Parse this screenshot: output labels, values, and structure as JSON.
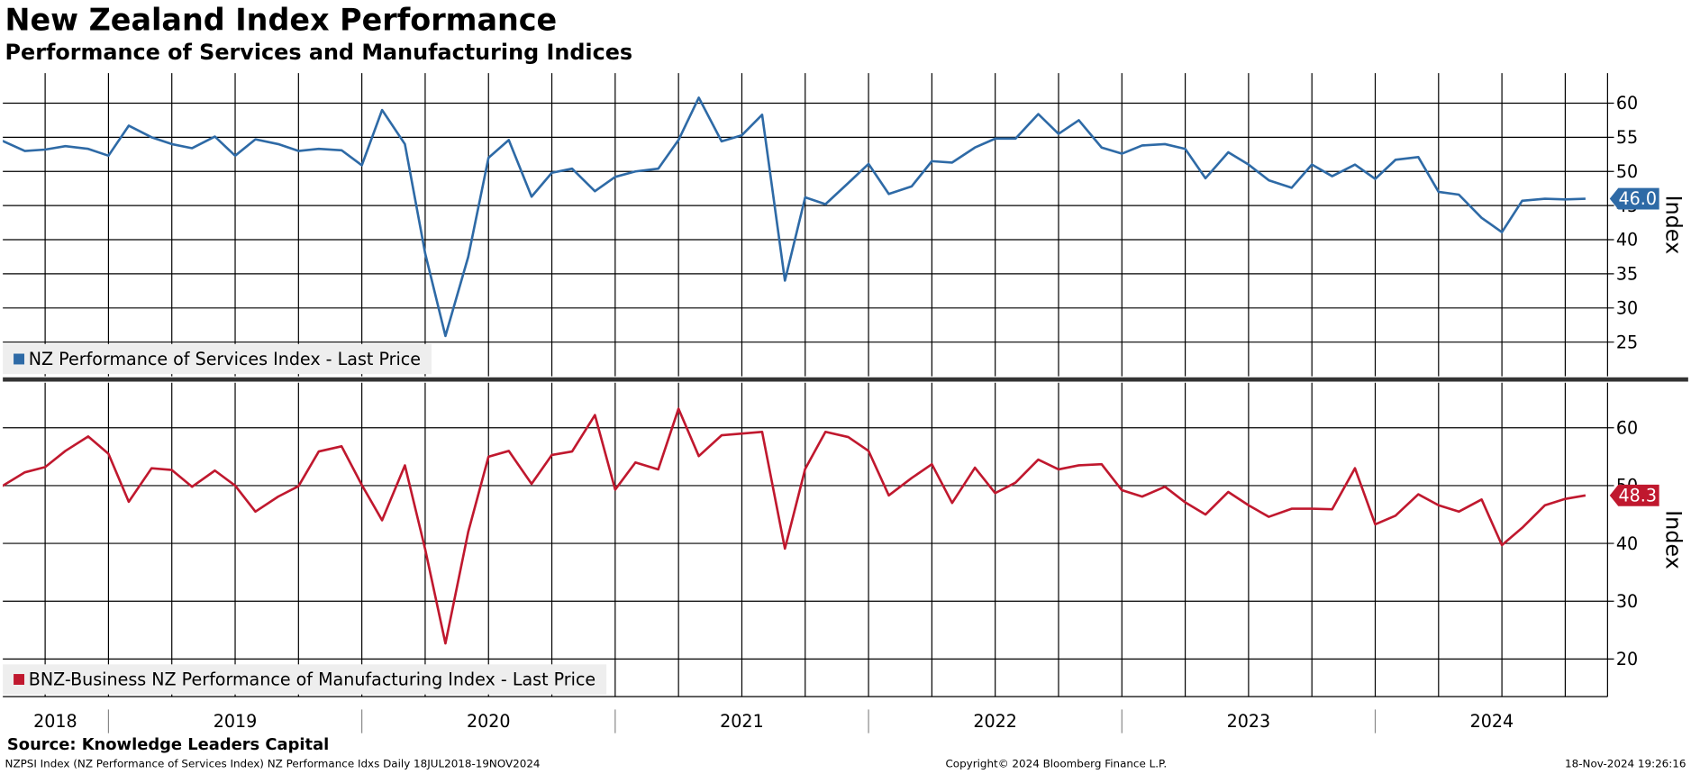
{
  "header": {
    "title": "New Zealand Index Performance",
    "subtitle": "Performance of Services and Manufacturing Indices"
  },
  "footer": {
    "source": "Source: Knowledge Leaders Capital",
    "note": "NZPSI Index (NZ Performance of Services Index) NZ Performance Idxs  Daily 18JUL2018-19NOV2024",
    "copyright": "Copyright© 2024 Bloomberg Finance L.P.",
    "timestamp": "18-Nov-2024 19:26:16"
  },
  "chart_data": [
    {
      "type": "line",
      "y_label": "Index",
      "grid": true,
      "legend": "lower left",
      "xlim": [
        2018.583,
        2024.917
      ],
      "x": [
        2018.58,
        2018.67,
        2018.75,
        2018.83,
        2018.92,
        2019.0,
        2019.08,
        2019.17,
        2019.25,
        2019.33,
        2019.42,
        2019.5,
        2019.58,
        2019.67,
        2019.75,
        2019.83,
        2019.92,
        2020.0,
        2020.08,
        2020.17,
        2020.25,
        2020.33,
        2020.42,
        2020.5,
        2020.58,
        2020.67,
        2020.75,
        2020.83,
        2020.92,
        2021.0,
        2021.08,
        2021.17,
        2021.25,
        2021.33,
        2021.42,
        2021.5,
        2021.58,
        2021.67,
        2021.75,
        2021.83,
        2021.92,
        2022.0,
        2022.08,
        2022.17,
        2022.25,
        2022.33,
        2022.42,
        2022.5,
        2022.58,
        2022.67,
        2022.75,
        2022.83,
        2022.92,
        2023.0,
        2023.08,
        2023.17,
        2023.25,
        2023.33,
        2023.42,
        2023.5,
        2023.58,
        2023.67,
        2023.75,
        2023.83,
        2023.92,
        2024.0,
        2024.08,
        2024.17,
        2024.25,
        2024.33,
        2024.42,
        2024.5,
        2024.58,
        2024.67,
        2024.75,
        2024.83
      ],
      "ylim": [
        20,
        64.4
      ],
      "yticks": [
        25,
        30,
        35,
        40,
        45,
        50,
        55,
        60
      ],
      "series": [
        {
          "name": "NZ Performance of Services Index - Last Price",
          "color": "#2e6aa6",
          "values": [
            54.5,
            53.0,
            53.2,
            53.7,
            53.3,
            52.3,
            56.7,
            55.0,
            54.0,
            53.4,
            55.1,
            52.3,
            54.7,
            54.0,
            53.0,
            53.3,
            53.1,
            50.9,
            59.0,
            54.0,
            38.0,
            25.9,
            37.5,
            52.0,
            54.6,
            46.3,
            49.8,
            50.4,
            47.1,
            49.2,
            50.0,
            50.4,
            54.6,
            60.8,
            54.4,
            55.3,
            58.3,
            34.0,
            46.2,
            45.2,
            48.3,
            51.1,
            46.7,
            47.8,
            51.5,
            51.3,
            53.5,
            54.8,
            54.8,
            58.4,
            55.5,
            57.5,
            53.5,
            52.6,
            53.8,
            54.0,
            53.3,
            49.0,
            52.8,
            51.0,
            48.7,
            47.6,
            51.0,
            49.3,
            51.0,
            48.9,
            51.7,
            52.1,
            47.0,
            46.6,
            43.2,
            41.1,
            45.7,
            46.0,
            45.9,
            46.0
          ],
          "value_labels": [
            null,
            null,
            null,
            null,
            null,
            null,
            null,
            null,
            null,
            null,
            null,
            null,
            null,
            null,
            null,
            null,
            null,
            null,
            null,
            null,
            null,
            null,
            null,
            null,
            null,
            null,
            null,
            null,
            null,
            null,
            null,
            null,
            null,
            null,
            null,
            null,
            null,
            null,
            null,
            null,
            null,
            null,
            null,
            null,
            null,
            null,
            null,
            null,
            null,
            null,
            null,
            null,
            null,
            null,
            null,
            null,
            null,
            null,
            null,
            null,
            null,
            null,
            null,
            null,
            null,
            null,
            null,
            null,
            null,
            null,
            null,
            null,
            null,
            null,
            null,
            "46.0"
          ]
        }
      ]
    },
    {
      "type": "line",
      "y_label": "Index",
      "grid": true,
      "legend": "lower left",
      "xlim": [
        2018.583,
        2024.917
      ],
      "xticks": [
        {
          "value": 2018.79,
          "label": "2018"
        },
        {
          "value": 2019.5,
          "label": "2019"
        },
        {
          "value": 2020.5,
          "label": "2020"
        },
        {
          "value": 2021.5,
          "label": "2021"
        },
        {
          "value": 2022.5,
          "label": "2022"
        },
        {
          "value": 2023.5,
          "label": "2023"
        },
        {
          "value": 2024.46,
          "label": "2024"
        }
      ],
      "x": [
        2018.58,
        2018.67,
        2018.75,
        2018.83,
        2018.92,
        2019.0,
        2019.08,
        2019.17,
        2019.25,
        2019.33,
        2019.42,
        2019.5,
        2019.58,
        2019.67,
        2019.75,
        2019.83,
        2019.92,
        2020.0,
        2020.08,
        2020.17,
        2020.25,
        2020.33,
        2020.42,
        2020.5,
        2020.58,
        2020.67,
        2020.75,
        2020.83,
        2020.92,
        2021.0,
        2021.08,
        2021.17,
        2021.25,
        2021.33,
        2021.42,
        2021.5,
        2021.58,
        2021.67,
        2021.75,
        2021.83,
        2021.92,
        2022.0,
        2022.08,
        2022.17,
        2022.25,
        2022.33,
        2022.42,
        2022.5,
        2022.58,
        2022.67,
        2022.75,
        2022.83,
        2022.92,
        2023.0,
        2023.08,
        2023.17,
        2023.25,
        2023.33,
        2023.42,
        2023.5,
        2023.58,
        2023.67,
        2023.75,
        2023.83,
        2023.92,
        2024.0,
        2024.08,
        2024.17,
        2024.25,
        2024.33,
        2024.42,
        2024.5,
        2024.58,
        2024.67,
        2024.75,
        2024.83
      ],
      "ylim": [
        13.5,
        67.8
      ],
      "yticks": [
        20,
        30,
        40,
        50,
        60
      ],
      "series": [
        {
          "name": "BNZ-Business NZ Performance of Manufacturing Index - Last Price",
          "color": "#c0182e",
          "values": [
            49.9,
            52.3,
            53.2,
            56.0,
            58.5,
            55.5,
            47.2,
            53.0,
            52.7,
            49.8,
            52.6,
            50.0,
            45.5,
            48.1,
            49.9,
            55.9,
            56.8,
            50.1,
            44.0,
            53.5,
            39.0,
            22.7,
            42.0,
            55.0,
            56.0,
            50.3,
            55.3,
            55.9,
            62.2,
            49.3,
            54.0,
            52.8,
            63.3,
            55.1,
            58.7,
            59.0,
            59.3,
            39.1,
            52.9,
            59.3,
            58.4,
            56.0,
            48.3,
            51.3,
            53.7,
            47.0,
            53.1,
            48.7,
            50.5,
            54.5,
            52.8,
            53.5,
            53.7,
            49.2,
            48.1,
            49.8,
            47.1,
            45.0,
            48.9,
            46.6,
            44.6,
            46.0,
            46.0,
            45.9,
            53.0,
            43.3,
            44.8,
            48.5,
            46.6,
            45.5,
            47.6,
            39.7,
            42.7,
            46.6,
            47.7,
            48.3
          ],
          "value_labels": [
            null,
            null,
            null,
            null,
            null,
            null,
            null,
            null,
            null,
            null,
            null,
            null,
            null,
            null,
            null,
            null,
            null,
            null,
            null,
            null,
            null,
            null,
            null,
            null,
            null,
            null,
            null,
            null,
            null,
            null,
            null,
            null,
            null,
            null,
            null,
            null,
            null,
            null,
            null,
            null,
            null,
            null,
            null,
            null,
            null,
            null,
            null,
            null,
            null,
            null,
            null,
            null,
            null,
            null,
            null,
            null,
            null,
            null,
            null,
            null,
            null,
            null,
            null,
            null,
            null,
            null,
            null,
            null,
            null,
            null,
            null,
            null,
            null,
            null,
            null,
            "48.3"
          ]
        }
      ]
    }
  ]
}
